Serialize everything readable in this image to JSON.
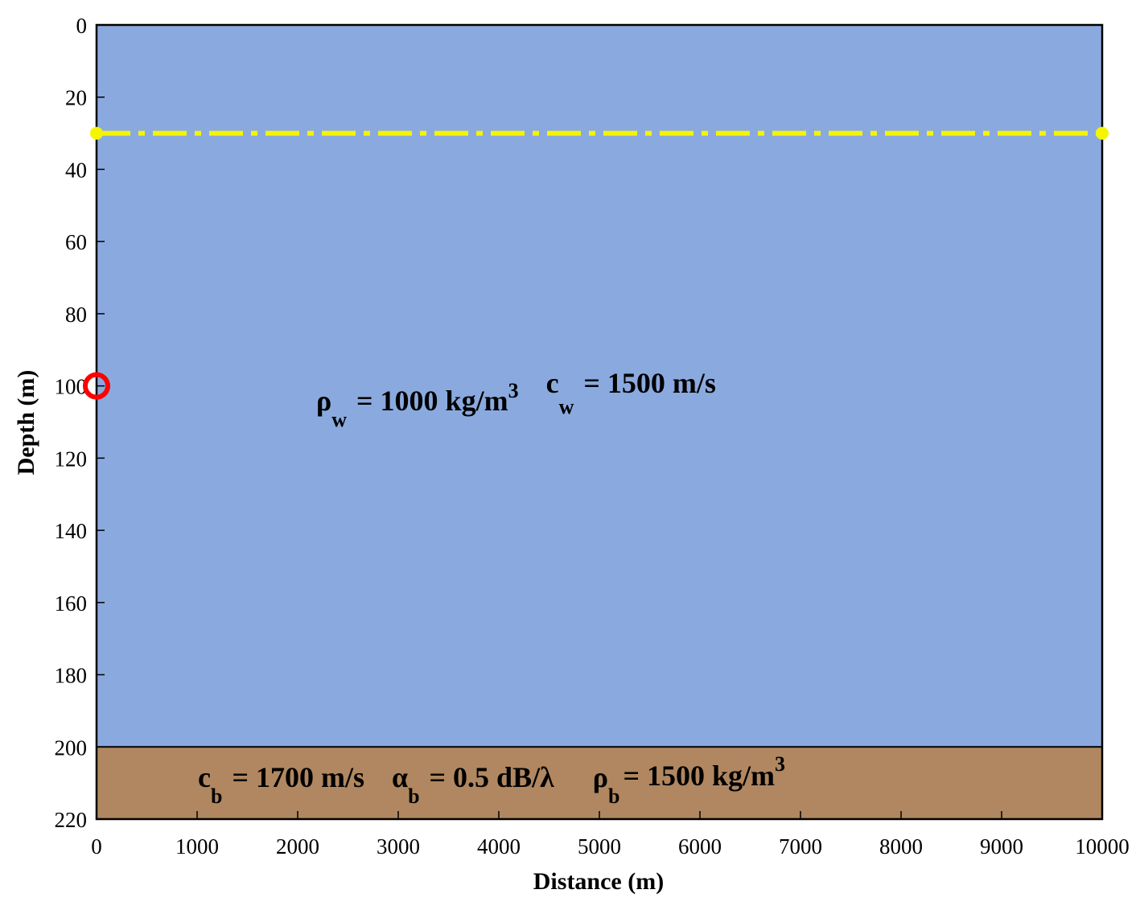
{
  "chart_data": {
    "type": "diagram",
    "xlabel": "Distance (m)",
    "ylabel": "Depth (m)",
    "xlim": [
      0,
      10000
    ],
    "ylim": [
      0,
      220
    ],
    "y_inverted": true,
    "xticks": [
      "0",
      "1000",
      "2000",
      "3000",
      "4000",
      "5000",
      "6000",
      "7000",
      "8000",
      "9000",
      "10000"
    ],
    "yticks": [
      "0",
      "20",
      "40",
      "60",
      "80",
      "100",
      "120",
      "140",
      "160",
      "180",
      "200",
      "220"
    ],
    "layers": [
      {
        "name": "water",
        "depth_from": 0,
        "depth_to": 200,
        "color": "#8aaadf"
      },
      {
        "name": "bottom",
        "depth_from": 200,
        "depth_to": 220,
        "color": "#b08760"
      }
    ],
    "receiver_line": {
      "depth": 30,
      "x_start": 0,
      "x_end": 10000,
      "color": "#f5f500",
      "style": "dash-dot"
    },
    "source": {
      "x": 0,
      "depth": 100,
      "color": "#ff0000",
      "marker": "circle"
    },
    "annotations": {
      "water": {
        "rho_sym": "ρ",
        "rho_sub": "w",
        "rho_val": "= 1000 kg/m",
        "rho_sup": "3",
        "c_sym": "c",
        "c_sub": "w",
        "c_val": "= 1500 m/s"
      },
      "bottom": {
        "c_sym": "c",
        "c_sub": "b",
        "c_val": "= 1700 m/s",
        "a_sym": "α",
        "a_sub": "b",
        "a_val": "= 0.5 dB/λ",
        "rho_sym": "ρ",
        "rho_sub": "b",
        "rho_val": "= 1500 kg/m",
        "rho_sup": "3"
      }
    }
  }
}
